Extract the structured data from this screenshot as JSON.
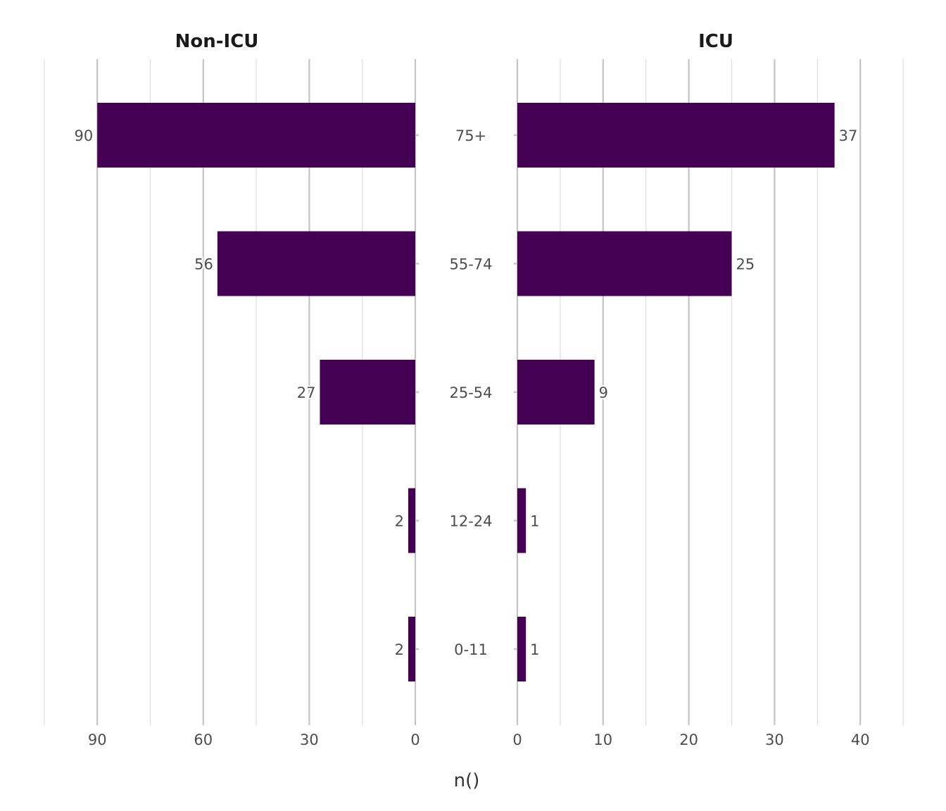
{
  "chart_data": {
    "type": "bar",
    "orientation": "horizontal",
    "layout": "butterfly",
    "xlabel": "n()",
    "categories": [
      "75+",
      "55-74",
      "25-54",
      "12-24",
      "0-11"
    ],
    "colors": {
      "bar": "#440154"
    },
    "grid": true,
    "panels": [
      {
        "title": "Non-ICU",
        "direction": "reversed",
        "values": [
          90,
          56,
          27,
          2,
          2
        ],
        "xlim": [
          0,
          105
        ],
        "ticks": [
          90,
          60,
          30,
          0
        ],
        "tick_labels": [
          "90",
          "60",
          "30",
          "0"
        ]
      },
      {
        "title": "ICU",
        "direction": "normal",
        "values": [
          37,
          25,
          9,
          1,
          1
        ],
        "xlim": [
          0,
          45
        ],
        "ticks": [
          0,
          10,
          20,
          30,
          40
        ],
        "tick_labels": [
          "0",
          "10",
          "20",
          "30",
          "40"
        ]
      }
    ]
  }
}
